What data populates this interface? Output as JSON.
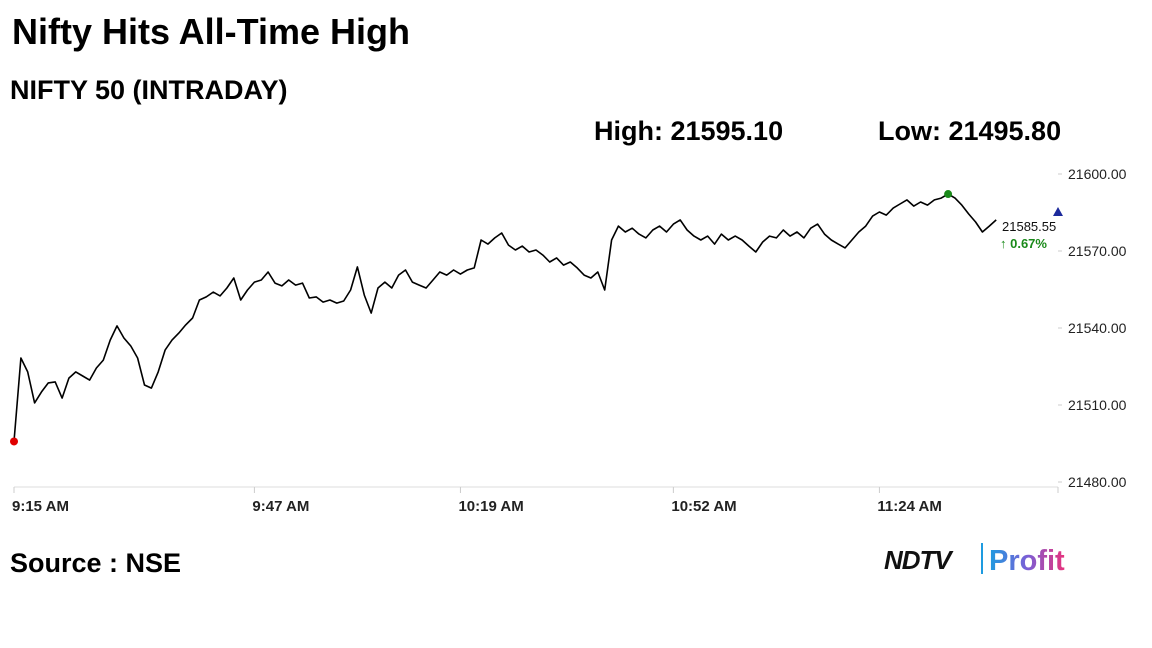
{
  "chart_data": {
    "type": "line",
    "title": "Nifty Hits All-Time High",
    "subtitle": "NIFTY 50 (INTRADAY)",
    "high_label": "High: 21595.10",
    "low_label": "Low: 21495.80",
    "last_price": "21585.55",
    "change": "↑ 0.67%",
    "source": "Source : NSE",
    "logo": {
      "brand": "NDTV",
      "product": "Profit"
    },
    "color": "#000000",
    "low_marker_color": "#e00000",
    "high_marker_color": "#1a8a1a",
    "change_color": "#1a8a1a",
    "categories": [
      "9:15 AM",
      null,
      null,
      null,
      null,
      null,
      null,
      null,
      null,
      null,
      null,
      null,
      null,
      null,
      null,
      null,
      null,
      null,
      null,
      null,
      null,
      null,
      null,
      null,
      null,
      null,
      null,
      null,
      null,
      null,
      null,
      null,
      null,
      null,
      null,
      "9:47 AM",
      null,
      null,
      null,
      null,
      null,
      null,
      null,
      null,
      null,
      null,
      null,
      null,
      null,
      null,
      null,
      null,
      null,
      null,
      null,
      null,
      null,
      null,
      null,
      null,
      null,
      null,
      null,
      null,
      null,
      "10:19 AM",
      null,
      null,
      null,
      null,
      null,
      null,
      null,
      null,
      null,
      null,
      null,
      null,
      null,
      null,
      null,
      null,
      null,
      null,
      null,
      null,
      null,
      null,
      null,
      null,
      null,
      null,
      null,
      null,
      null,
      null,
      "10:52 AM",
      null,
      null,
      null,
      null,
      null,
      null,
      null,
      null,
      null,
      null,
      null,
      null,
      null,
      null,
      null,
      null,
      null,
      null,
      null,
      null,
      null,
      null,
      null,
      null,
      null,
      null,
      null,
      null,
      null,
      "11:24 AM",
      null,
      null,
      null,
      null,
      null,
      null,
      null,
      null,
      null,
      null,
      null,
      null,
      null,
      null,
      null,
      null,
      null,
      null,
      null,
      null,
      null,
      null,
      null,
      null,
      null,
      null
    ],
    "values": [
      21495.8,
      21528.3,
      21522.9,
      21510.8,
      21515.1,
      21518.6,
      21519.0,
      21512.7,
      21520.5,
      21522.9,
      21521.3,
      21519.7,
      21524.4,
      21527.5,
      21535.3,
      21540.8,
      21536.1,
      21533.0,
      21528.3,
      21517.8,
      21516.6,
      21522.9,
      21531.4,
      21535.3,
      21538.0,
      21541.2,
      21543.9,
      21550.9,
      21552.1,
      21554.0,
      21552.5,
      21555.6,
      21559.5,
      21550.9,
      21554.8,
      21557.9,
      21558.7,
      21561.8,
      21557.5,
      21556.4,
      21558.7,
      21556.7,
      21557.5,
      21551.7,
      21552.1,
      21550.1,
      21550.9,
      21549.7,
      21550.5,
      21554.8,
      21563.8,
      21552.8,
      21545.8,
      21555.6,
      21557.9,
      21555.6,
      21560.6,
      21562.6,
      21557.9,
      21556.7,
      21555.6,
      21558.7,
      21561.8,
      21560.6,
      21562.6,
      21561.0,
      21562.6,
      21563.4,
      21574.3,
      21572.7,
      21575.1,
      21577.0,
      21572.3,
      21570.4,
      21571.9,
      21569.6,
      21570.4,
      21568.4,
      21565.7,
      21567.3,
      21564.5,
      21565.7,
      21563.4,
      21560.6,
      21559.5,
      21561.8,
      21554.8,
      21574.3,
      21579.7,
      21577.4,
      21578.9,
      21576.6,
      21575.1,
      21578.2,
      21579.7,
      21577.4,
      21580.5,
      21582.1,
      21578.2,
      21575.8,
      21574.3,
      21575.8,
      21572.7,
      21576.6,
      21574.3,
      21575.8,
      21574.3,
      21571.9,
      21569.6,
      21573.5,
      21575.8,
      21575.1,
      21578.2,
      21575.8,
      21577.4,
      21575.1,
      21578.9,
      21580.5,
      21576.6,
      21574.3,
      21572.7,
      21571.2,
      21574.3,
      21577.4,
      21579.7,
      21583.6,
      21585.2,
      21584.0,
      21586.7,
      21588.3,
      21589.9,
      21587.5,
      21589.1,
      21587.9,
      21589.9,
      21590.6,
      21592.2,
      21590.6,
      21587.9,
      21584.4,
      21581.3,
      21577.4,
      21579.7,
      21582.1,
      null,
      null,
      null,
      null,
      null,
      null,
      null,
      null,
      null
    ],
    "ylim": [
      21480,
      21600
    ],
    "yticks": [
      {
        "value": 21480,
        "label": "21480.00"
      },
      {
        "value": 21510,
        "label": "21510.00"
      },
      {
        "value": 21540,
        "label": "21540.00"
      },
      {
        "value": 21570,
        "label": "21570.00"
      },
      {
        "value": 21600,
        "label": "21600.00"
      }
    ]
  }
}
